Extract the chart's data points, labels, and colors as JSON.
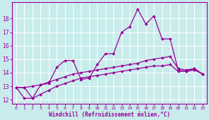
{
  "xlabel": "Windchill (Refroidissement éolien,°C)",
  "background_color": "#c8ecec",
  "grid_color": "#ffffff",
  "line_color": "#990099",
  "xlim": [
    -0.5,
    23.5
  ],
  "ylim": [
    11.7,
    19.2
  ],
  "yticks": [
    12,
    13,
    14,
    15,
    16,
    17,
    18
  ],
  "xticks": [
    0,
    1,
    2,
    3,
    4,
    5,
    6,
    7,
    8,
    9,
    10,
    11,
    12,
    13,
    14,
    15,
    16,
    17,
    18,
    19,
    20,
    21,
    22,
    23
  ],
  "series": [
    {
      "x": [
        0,
        1,
        2,
        3,
        4,
        5,
        6,
        7,
        8,
        9,
        10,
        11,
        12,
        13,
        14,
        15,
        16,
        17,
        18,
        19,
        20,
        21,
        22,
        23
      ],
      "y": [
        12.9,
        12.9,
        12.1,
        13.1,
        13.2,
        14.4,
        14.9,
        14.9,
        13.5,
        13.6,
        14.6,
        15.4,
        15.4,
        17.0,
        17.4,
        18.7,
        17.6,
        18.2,
        16.5,
        16.5,
        14.2,
        14.1,
        14.3,
        13.9
      ]
    },
    {
      "x": [
        0,
        1,
        2,
        3,
        4,
        5,
        6,
        7,
        8,
        9,
        10,
        11,
        12,
        13,
        14,
        15,
        16,
        17,
        18,
        19,
        20,
        21,
        22,
        23
      ],
      "y": [
        12.9,
        12.9,
        13.0,
        13.1,
        13.3,
        13.5,
        13.7,
        13.9,
        14.0,
        14.1,
        14.2,
        14.3,
        14.4,
        14.5,
        14.6,
        14.7,
        14.9,
        15.0,
        15.1,
        15.2,
        14.3,
        14.2,
        14.3,
        13.9
      ]
    },
    {
      "x": [
        0,
        1,
        2,
        3,
        4,
        5,
        6,
        7,
        8,
        9,
        10,
        11,
        12,
        13,
        14,
        15,
        16,
        17,
        18,
        19,
        20,
        21,
        22,
        23
      ],
      "y": [
        12.9,
        12.1,
        12.1,
        12.4,
        12.7,
        13.0,
        13.2,
        13.4,
        13.6,
        13.7,
        13.8,
        13.9,
        14.0,
        14.1,
        14.2,
        14.3,
        14.4,
        14.5,
        14.5,
        14.6,
        14.1,
        14.1,
        14.2,
        13.9
      ]
    }
  ]
}
